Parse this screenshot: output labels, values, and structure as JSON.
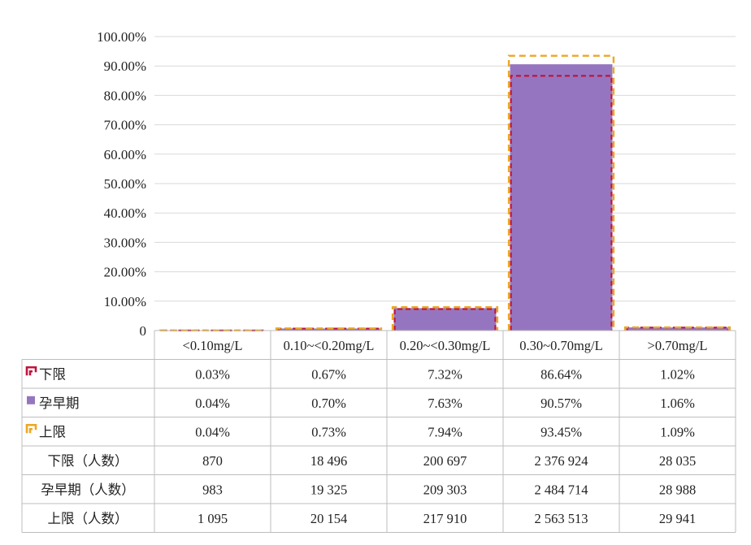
{
  "chart_data": {
    "type": "bar",
    "categories": [
      "<0.10mg/L",
      "0.10~<0.20mg/L",
      "0.20~<0.30mg/L",
      "0.30~0.70mg/L",
      ">0.70mg/L"
    ],
    "y_ticks": [
      "0",
      "10.00%",
      "20.00%",
      "30.00%",
      "40.00%",
      "50.00%",
      "60.00%",
      "70.00%",
      "80.00%",
      "90.00%",
      "100.00%"
    ],
    "ylim": [
      0,
      100
    ],
    "grid": true,
    "series": [
      {
        "name": "下限",
        "style": "dashed-outline",
        "color": "#c0143c",
        "values": [
          0.03,
          0.67,
          7.32,
          86.64,
          1.02
        ],
        "labels": [
          "0.03%",
          "0.67%",
          "7.32%",
          "86.64%",
          "1.02%"
        ]
      },
      {
        "name": "孕早期",
        "style": "bar",
        "color": "#9675c0",
        "values": [
          0.04,
          0.7,
          7.63,
          90.57,
          1.06
        ],
        "labels": [
          "0.04%",
          "0.70%",
          "7.63%",
          "90.57%",
          "1.06%"
        ]
      },
      {
        "name": "上限",
        "style": "dashed-outline",
        "color": "#eba724",
        "values": [
          0.04,
          0.73,
          7.94,
          93.45,
          1.09
        ],
        "labels": [
          "0.04%",
          "0.73%",
          "7.94%",
          "93.45%",
          "1.09%"
        ]
      }
    ],
    "count_rows": [
      {
        "name": "下限（人数）",
        "values": [
          "870",
          "18 496",
          "200 697",
          "2 376 924",
          "28 035"
        ]
      },
      {
        "name": "孕早期（人数）",
        "values": [
          "983",
          "19 325",
          "209 303",
          "2 484 714",
          "28 988"
        ]
      },
      {
        "name": "上限（人数）",
        "values": [
          "1 095",
          "20 154",
          "217 910",
          "2 563 513",
          "29 941"
        ]
      }
    ]
  }
}
